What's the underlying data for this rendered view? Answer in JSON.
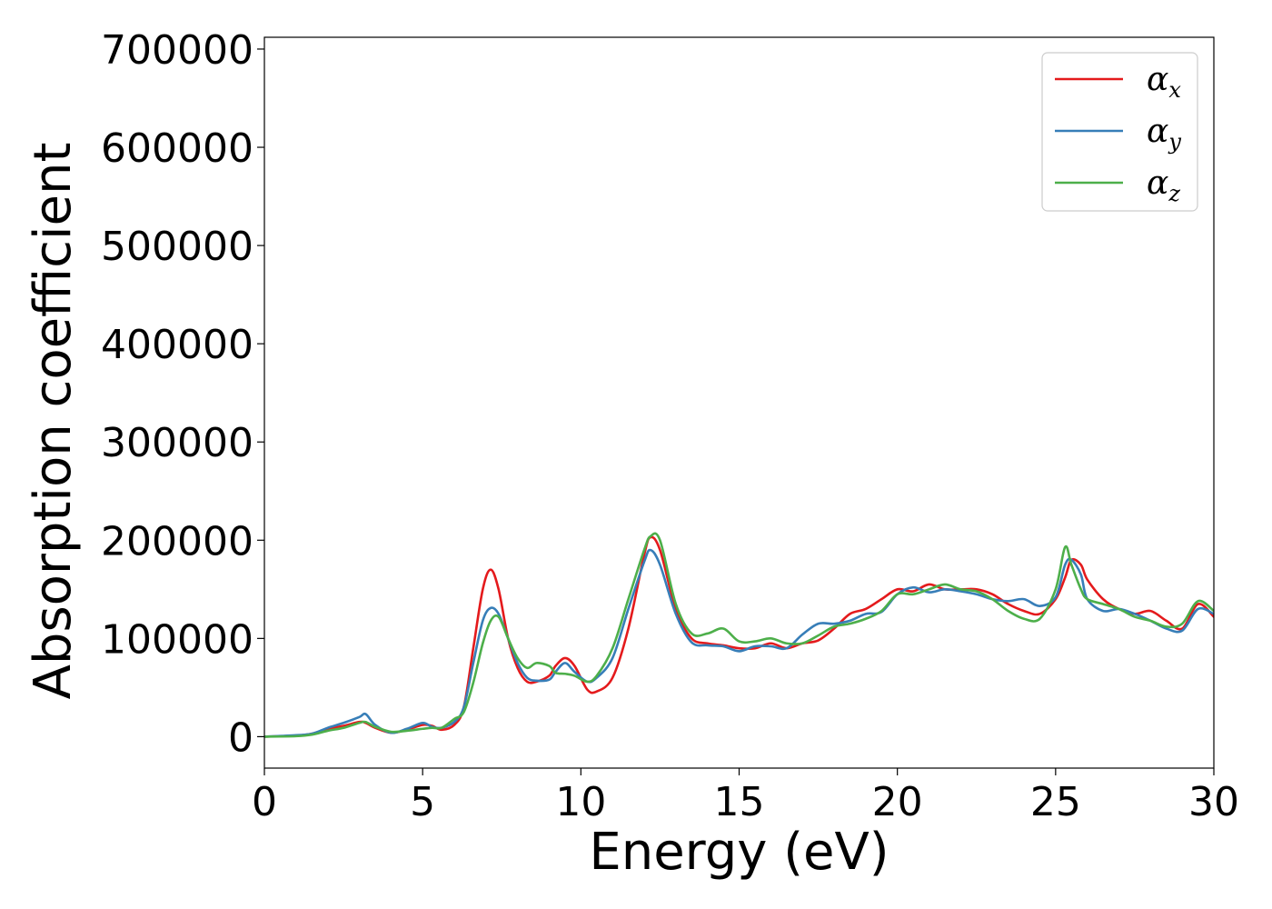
{
  "chart_data": {
    "type": "line",
    "title": "",
    "xlabel": "Energy (eV)",
    "ylabel": "Absorption coefficient",
    "xlim": [
      0,
      30
    ],
    "ylim": [
      -32000,
      712000
    ],
    "xticks": [
      0,
      5,
      10,
      15,
      20,
      25,
      30
    ],
    "xtick_labels": [
      "0",
      "5",
      "10",
      "15",
      "20",
      "25",
      "30"
    ],
    "yticks": [
      0,
      100000,
      200000,
      300000,
      400000,
      500000,
      600000,
      700000
    ],
    "ytick_labels": [
      "0",
      "100000",
      "200000",
      "300000",
      "400000",
      "500000",
      "600000",
      "700000"
    ],
    "grid": false,
    "legend_position": "top-right",
    "series": [
      {
        "name": "α_x",
        "legend_symbol": "α",
        "legend_subscript": "x",
        "color": "#e41a1c",
        "x": [
          0,
          1,
          1.5,
          2,
          2.5,
          3,
          3.2,
          3.5,
          4,
          4.5,
          5,
          5.3,
          5.6,
          6,
          6.3,
          6.6,
          6.9,
          7.15,
          7.4,
          7.7,
          8,
          8.3,
          8.6,
          9,
          9.2,
          9.5,
          9.8,
          10.2,
          10.5,
          11,
          11.5,
          12,
          12.2,
          12.5,
          13,
          13.5,
          14,
          14.5,
          15,
          15.5,
          16,
          16.5,
          17,
          17.5,
          18,
          18.5,
          19,
          19.5,
          20,
          20.5,
          21,
          21.5,
          22,
          22.5,
          23,
          23.5,
          24,
          24.5,
          25,
          25.3,
          25.5,
          25.8,
          26,
          26.5,
          27,
          27.5,
          28,
          28.5,
          29,
          29.5,
          30
        ],
        "y": [
          0,
          1000,
          3000,
          8000,
          11000,
          15000,
          14000,
          9000,
          4000,
          7000,
          12000,
          11000,
          7000,
          12000,
          30000,
          90000,
          150000,
          170000,
          150000,
          100000,
          70000,
          56000,
          56000,
          62000,
          72000,
          80000,
          72000,
          48000,
          46000,
          60000,
          110000,
          185000,
          203000,
          190000,
          130000,
          100000,
          95000,
          93000,
          90000,
          90000,
          95000,
          90000,
          95000,
          98000,
          110000,
          125000,
          130000,
          140000,
          150000,
          148000,
          155000,
          150000,
          150000,
          150000,
          145000,
          135000,
          128000,
          125000,
          140000,
          162000,
          180000,
          175000,
          160000,
          140000,
          130000,
          125000,
          128000,
          118000,
          110000,
          135000,
          122000
        ]
      },
      {
        "name": "α_y",
        "legend_symbol": "α",
        "legend_subscript": "y",
        "color": "#377eb8",
        "x": [
          0,
          1,
          1.5,
          2,
          2.5,
          3,
          3.2,
          3.5,
          4,
          4.5,
          5,
          5.3,
          5.6,
          6,
          6.3,
          6.6,
          6.9,
          7.15,
          7.4,
          7.7,
          8,
          8.3,
          8.6,
          9,
          9.2,
          9.5,
          9.8,
          10.2,
          10.5,
          11,
          11.5,
          12,
          12.2,
          12.5,
          13,
          13.5,
          14,
          14.5,
          15,
          15.5,
          16,
          16.5,
          17,
          17.5,
          18,
          18.5,
          19,
          19.5,
          20,
          20.5,
          21,
          21.5,
          22,
          22.5,
          23,
          23.5,
          24,
          24.5,
          25,
          25.3,
          25.5,
          25.8,
          26,
          26.5,
          27,
          27.5,
          28,
          28.5,
          29,
          29.5,
          30
        ],
        "y": [
          0,
          1500,
          3000,
          9000,
          14000,
          20000,
          23000,
          12000,
          4000,
          8000,
          14000,
          10000,
          9000,
          15000,
          30000,
          75000,
          118000,
          131000,
          125000,
          100000,
          75000,
          60000,
          57000,
          58000,
          66000,
          75000,
          66000,
          56000,
          60000,
          80000,
          130000,
          178000,
          190000,
          175000,
          125000,
          96000,
          93000,
          92000,
          87000,
          92000,
          92000,
          90000,
          104000,
          115000,
          115000,
          118000,
          125000,
          127000,
          145000,
          152000,
          147000,
          150000,
          148000,
          145000,
          140000,
          138000,
          140000,
          133000,
          142000,
          175000,
          180000,
          165000,
          140000,
          128000,
          130000,
          125000,
          118000,
          110000,
          108000,
          130000,
          125000
        ]
      },
      {
        "name": "α_z",
        "legend_symbol": "α",
        "legend_subscript": "z",
        "color": "#4daf4a",
        "x": [
          0,
          1,
          1.5,
          2,
          2.5,
          3,
          3.2,
          3.5,
          4,
          4.5,
          5,
          5.3,
          5.6,
          6,
          6.3,
          6.6,
          6.9,
          7.15,
          7.4,
          7.7,
          8,
          8.3,
          8.6,
          9,
          9.2,
          9.5,
          9.8,
          10.2,
          10.5,
          11,
          11.5,
          12,
          12.2,
          12.5,
          13,
          13.5,
          14,
          14.5,
          15,
          15.5,
          16,
          16.5,
          17,
          17.5,
          18,
          18.5,
          19,
          19.5,
          20,
          20.5,
          21,
          21.5,
          22,
          22.5,
          23,
          23.5,
          24,
          24.5,
          25,
          25.3,
          25.5,
          25.8,
          26,
          26.5,
          27,
          27.5,
          28,
          28.5,
          29,
          29.5,
          30
        ],
        "y": [
          0,
          500,
          2000,
          6000,
          9000,
          14000,
          15000,
          10000,
          5000,
          6000,
          8000,
          9000,
          9000,
          18000,
          25000,
          55000,
          95000,
          118000,
          122000,
          100000,
          80000,
          70000,
          75000,
          72000,
          65000,
          64000,
          62000,
          56000,
          62000,
          90000,
          140000,
          190000,
          204000,
          200000,
          135000,
          105000,
          105000,
          110000,
          97000,
          97000,
          100000,
          95000,
          95000,
          103000,
          112000,
          115000,
          120000,
          128000,
          145000,
          145000,
          150000,
          155000,
          150000,
          148000,
          140000,
          128000,
          120000,
          120000,
          150000,
          193000,
          175000,
          150000,
          140000,
          135000,
          130000,
          122000,
          118000,
          112000,
          115000,
          138000,
          128000
        ]
      }
    ]
  }
}
